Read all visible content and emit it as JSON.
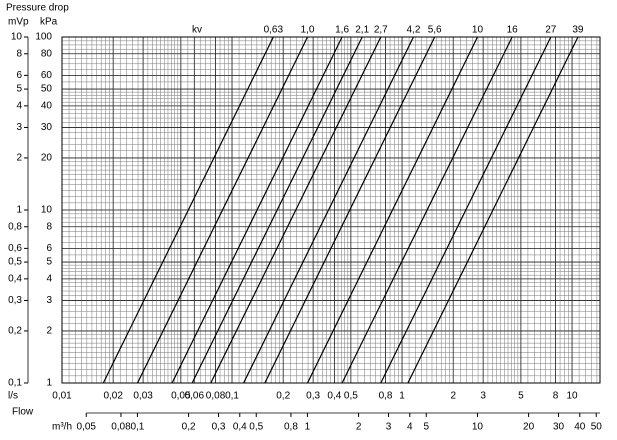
{
  "chart_data": {
    "type": "line",
    "title": "Pressure drop",
    "y_label": "kPa",
    "y2_label": "mVp",
    "x_label": "l/s",
    "x2_label": "m³/h",
    "x_title": "Flow",
    "series_title": "kv",
    "log_x": true,
    "log_y": true,
    "grid": true,
    "xlim": [
      0.01,
      14.6
    ],
    "x2lim": [
      0.036,
      52.6
    ],
    "ylim": [
      1,
      100
    ],
    "y2lim": [
      0.1,
      10
    ],
    "yticks": [
      1,
      2,
      3,
      4,
      5,
      6,
      8,
      10,
      20,
      30,
      40,
      50,
      60,
      80,
      100
    ],
    "y2ticks": [
      {
        "value": 0.1,
        "label": "0,1"
      },
      {
        "value": 0.2,
        "label": "0,2"
      },
      {
        "value": 0.3,
        "label": "0,3"
      },
      {
        "value": 0.4,
        "label": "0,4"
      },
      {
        "value": 0.5,
        "label": "0,5"
      },
      {
        "value": 0.6,
        "label": "0,6"
      },
      {
        "value": 0.8,
        "label": "0,8"
      },
      1,
      2,
      3,
      4,
      5,
      6,
      8,
      10
    ],
    "xticks": [
      {
        "value": 0.01,
        "label": "0,01"
      },
      {
        "value": 0.02,
        "label": "0,02"
      },
      {
        "value": 0.03,
        "label": "0,03"
      },
      {
        "value": 0.05,
        "label": "0,05"
      },
      {
        "value": 0.06,
        "label": "0,06"
      },
      {
        "value": 0.08,
        "label": "0,08"
      },
      {
        "value": 0.1,
        "label": "0,1"
      },
      {
        "value": 0.2,
        "label": "0,2"
      },
      {
        "value": 0.3,
        "label": "0,3"
      },
      {
        "value": 0.4,
        "label": "0,4"
      },
      {
        "value": 0.5,
        "label": "0,5"
      },
      {
        "value": 0.8,
        "label": "0,8"
      },
      1,
      2,
      3,
      5,
      8,
      10
    ],
    "x2ticks": [
      {
        "value": 0.05,
        "label": "0,05"
      },
      {
        "value": 0.08,
        "label": "0,08"
      },
      {
        "value": 0.1,
        "label": "0,1"
      },
      {
        "value": 0.2,
        "label": "0,2"
      },
      {
        "value": 0.3,
        "label": "0,3"
      },
      {
        "value": 0.4,
        "label": "0,4"
      },
      {
        "value": 0.5,
        "label": "0,5"
      },
      {
        "value": 0.8,
        "label": "0,8"
      },
      1,
      2,
      3,
      4,
      5,
      10,
      20,
      30,
      40,
      50
    ],
    "series": [
      {
        "name": "0,63",
        "color": "#000000",
        "x": [
          0.0175,
          0.175
        ],
        "values": [
          1,
          100
        ]
      },
      {
        "name": "1,0",
        "color": "#000000",
        "x": [
          0.0278,
          0.278
        ],
        "values": [
          1,
          100
        ]
      },
      {
        "name": "1,6",
        "color": "#000000",
        "x": [
          0.0444,
          0.444
        ],
        "values": [
          1,
          100
        ]
      },
      {
        "name": "2,1",
        "color": "#000000",
        "x": [
          0.0583,
          0.583
        ],
        "values": [
          1,
          100
        ]
      },
      {
        "name": "2,7",
        "color": "#000000",
        "x": [
          0.075,
          0.75
        ],
        "values": [
          1,
          100
        ]
      },
      {
        "name": "4,2",
        "color": "#000000",
        "x": [
          0.117,
          1.167
        ],
        "values": [
          1,
          100
        ]
      },
      {
        "name": "5,6",
        "color": "#000000",
        "x": [
          0.156,
          1.556
        ],
        "values": [
          1,
          100
        ]
      },
      {
        "name": "10",
        "color": "#000000",
        "x": [
          0.278,
          2.778
        ],
        "values": [
          1,
          100
        ]
      },
      {
        "name": "16",
        "color": "#000000",
        "x": [
          0.444,
          4.444
        ],
        "values": [
          1,
          100
        ]
      },
      {
        "name": "27",
        "color": "#000000",
        "x": [
          0.75,
          7.5
        ],
        "values": [
          1,
          100
        ]
      },
      {
        "name": "39",
        "color": "#000000",
        "x": [
          1.083,
          10.83
        ],
        "values": [
          1,
          100
        ]
      }
    ]
  }
}
